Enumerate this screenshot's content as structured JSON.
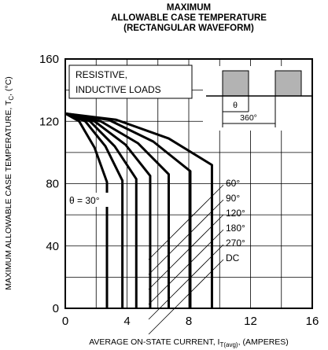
{
  "chart_data": {
    "type": "line",
    "title": [
      "MAXIMUM",
      "ALLOWABLE CASE TEMPERATURE",
      "(RECTANGULAR WAVEFORM)"
    ],
    "ylabel": [
      "MAXIMUM ALLOWABLE CASE TEMPERATURE, T",
      "C",
      ", (°C)"
    ],
    "xlabel": [
      "AVERAGE ON-STATE CURRENT, I",
      "T(avg)",
      ", (AMPERES)"
    ],
    "annotations": [
      "RESISTIVE,",
      "INDUCTIVE LOADS",
      "θ",
      "360°"
    ],
    "xlim": [
      0,
      16
    ],
    "ylim": [
      0,
      160
    ],
    "xticks": [
      0,
      4,
      8,
      12,
      16
    ],
    "yticks": [
      0,
      40,
      80,
      120,
      160
    ],
    "x_minor_ticks": [
      2,
      6,
      10,
      14
    ],
    "y_minor_ticks": [
      20,
      60,
      100,
      140
    ],
    "grid": true,
    "series": [
      {
        "name": "θ = 30°",
        "color": "#000000",
        "x": [
          0,
          0.9,
          1.9,
          2.7,
          2.7
        ],
        "values": [
          125,
          120,
          103,
          81,
          0
        ]
      },
      {
        "name": "60°",
        "color": "#000000",
        "x": [
          0,
          1.3,
          2.6,
          3.7,
          3.7
        ],
        "values": [
          125,
          120,
          104,
          82,
          0
        ]
      },
      {
        "name": "90°",
        "color": "#000000",
        "x": [
          0,
          1.6,
          3.2,
          4.6,
          4.6
        ],
        "values": [
          125,
          120,
          104,
          83,
          0
        ]
      },
      {
        "name": "120°",
        "color": "#000000",
        "x": [
          0,
          1.9,
          3.9,
          5.5,
          5.5
        ],
        "values": [
          125,
          120,
          105,
          85,
          0
        ]
      },
      {
        "name": "180°",
        "color": "#000000",
        "x": [
          0,
          2.3,
          4.7,
          6.7,
          6.7
        ],
        "values": [
          125,
          120,
          106,
          86,
          0
        ]
      },
      {
        "name": "270°",
        "color": "#000000",
        "x": [
          0,
          2.8,
          5.7,
          8.1,
          8.1
        ],
        "values": [
          125,
          121,
          107,
          88,
          0
        ]
      },
      {
        "name": "DC",
        "color": "#000000",
        "x": [
          0,
          3.3,
          6.7,
          9.5,
          9.5
        ],
        "values": [
          125,
          121,
          109,
          92,
          0
        ]
      }
    ]
  }
}
